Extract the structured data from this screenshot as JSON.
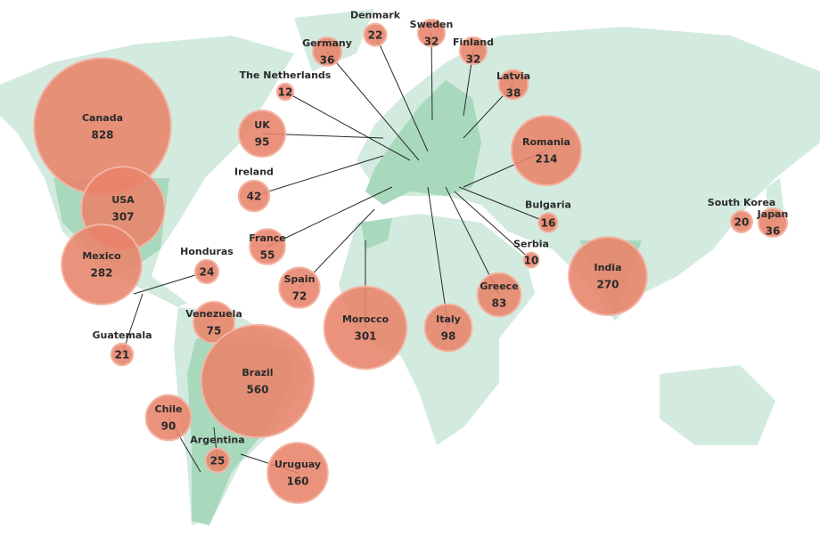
{
  "bubbles": [
    {
      "label": "Canada",
      "value": 828
    },
    {
      "label": "USA",
      "value": 307
    },
    {
      "label": "Mexico",
      "value": 282
    },
    {
      "label": "Honduras",
      "value": 24
    },
    {
      "label": "Guatemala",
      "value": 21
    },
    {
      "label": "Venezuela",
      "value": 75
    },
    {
      "label": "Brazil",
      "value": 560
    },
    {
      "label": "Chile",
      "value": 90
    },
    {
      "label": "Argentina",
      "value": 25
    },
    {
      "label": "Uruguay",
      "value": 160
    },
    {
      "label": "UK",
      "value": 95
    },
    {
      "label": "Ireland",
      "value": 42
    },
    {
      "label": "France",
      "value": 55
    },
    {
      "label": "Spain",
      "value": 72
    },
    {
      "label": "Morocco",
      "value": 301
    },
    {
      "label": "Italy",
      "value": 98
    },
    {
      "label": "Greece",
      "value": 83
    },
    {
      "label": "Serbia",
      "value": 10
    },
    {
      "label": "Bulgaria",
      "value": 16
    },
    {
      "label": "Romania",
      "value": 214
    },
    {
      "label": "India",
      "value": 270
    },
    {
      "label": "South Korea",
      "value": 20
    },
    {
      "label": "Japan",
      "value": 36
    },
    {
      "label": "The Netherlands",
      "value": 12
    },
    {
      "label": "Germany",
      "value": 36
    },
    {
      "label": "Denmark",
      "value": 22
    },
    {
      "label": "Sweden",
      "value": 32
    },
    {
      "label": "Finland",
      "value": 32
    },
    {
      "label": "Latvia",
      "value": 38
    }
  ]
}
